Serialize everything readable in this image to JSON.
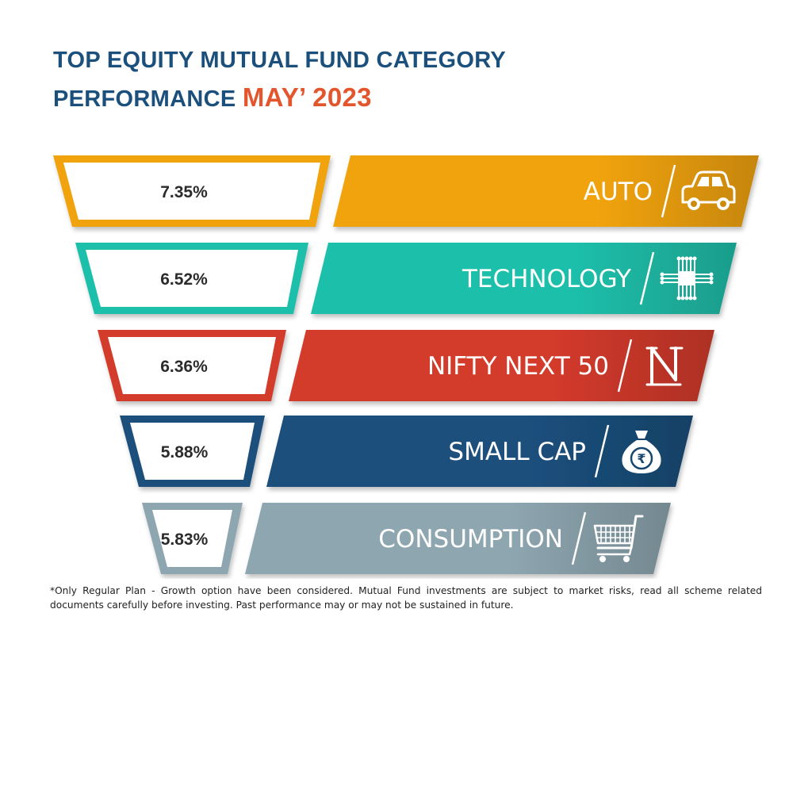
{
  "header": {
    "title_line1": "TOP EQUITY MUTUAL FUND CATEGORY",
    "title_line2": "PERFORMANCE",
    "title_accent": "MAY’ 2023"
  },
  "chart_data": {
    "type": "bar",
    "title": "TOP EQUITY MUTUAL FUND CATEGORY PERFORMANCE MAY’ 2023",
    "categories": [
      "AUTO",
      "TECHNOLOGY",
      "NIFTY NEXT 50",
      "SMALL CAP",
      "CONSUMPTION"
    ],
    "values": [
      7.35,
      6.52,
      6.36,
      5.88,
      5.83
    ],
    "value_labels": [
      "7.35%",
      "6.52%",
      "6.36%",
      "5.88%",
      "5.83%"
    ],
    "unit": "%",
    "layout": "funnel",
    "colors": [
      "#f1a30b",
      "#1fbfaa",
      "#d33a2c",
      "#1b4f7c",
      "#8ea6b0"
    ],
    "icons": [
      "car-icon",
      "circuit-chip-icon",
      "nifty-logo-icon",
      "money-bag-rupee-icon",
      "shopping-cart-icon"
    ]
  },
  "footer": {
    "disclaimer": "*Only Regular Plan - Growth option have been considered. Mutual Fund investments are subject to market risks, read all scheme related documents carefully before investing. Past performance may or may not be sustained in future."
  }
}
